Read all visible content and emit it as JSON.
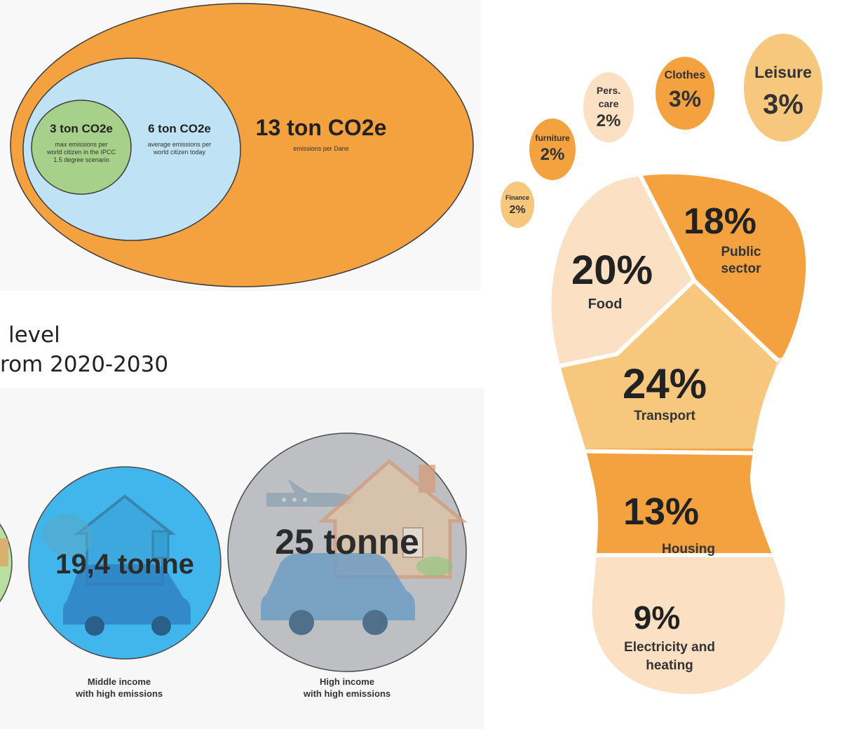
{
  "ellipses": {
    "inner": {
      "value": "3 ton CO2e",
      "desc": [
        "max emissions per",
        "world citizen in the IPCC",
        "1.5 degree scenario"
      ]
    },
    "middle": {
      "value": "6 ton CO2e",
      "desc": [
        "average emissions per",
        "world citizen today"
      ]
    },
    "outer": {
      "value": "13 ton CO2e",
      "desc": [
        "emissions per Dane"
      ]
    }
  },
  "caption": {
    "line1": "level",
    "line2": "rom 2020-2030"
  },
  "income": {
    "middle": {
      "value": "19,4 tonne",
      "label": [
        "Middle income",
        "with high emissions"
      ]
    },
    "high": {
      "value": "25 tonne",
      "label": [
        "High income",
        "with high emissions"
      ]
    }
  },
  "footprint": {
    "toes": [
      {
        "pct": "2%",
        "label": [
          "Finance"
        ]
      },
      {
        "pct": "2%",
        "label": [
          "furniture"
        ]
      },
      {
        "pct": "2%",
        "label": [
          "Pers.",
          "care"
        ]
      },
      {
        "pct": "3%",
        "label": [
          "Clothes"
        ]
      },
      {
        "pct": "3%",
        "label": [
          "Leisure"
        ]
      }
    ],
    "sole": [
      {
        "pct": "20%",
        "label": [
          "Food"
        ]
      },
      {
        "pct": "18%",
        "label": [
          "Public",
          "sector"
        ]
      },
      {
        "pct": "24%",
        "label": [
          "Transport"
        ]
      },
      {
        "pct": "13%",
        "label": [
          "Housing"
        ]
      },
      {
        "pct": "9%",
        "label": [
          "Electricity and",
          "heating"
        ]
      }
    ]
  },
  "colors": {
    "orange": "#f4a23f",
    "light_orange": "#f7c77e",
    "pale": "#fbe0c4",
    "blue": "#bfe3f5",
    "green": "#a7d18a",
    "cyan": "#40b6ec",
    "gray": "#bdbfc2"
  }
}
